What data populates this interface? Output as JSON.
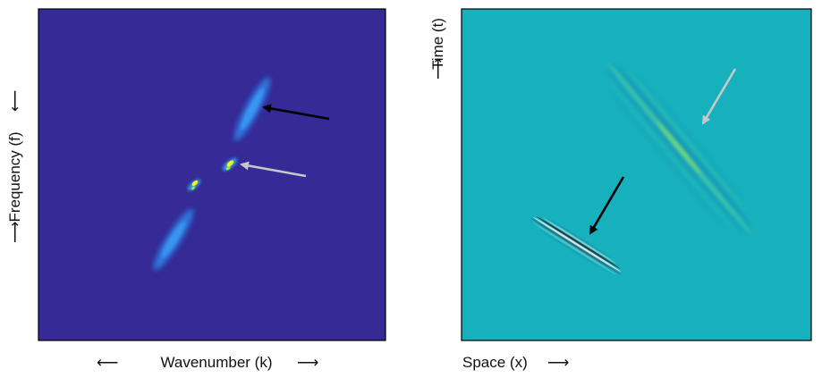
{
  "left_panel": {
    "title": "",
    "xlabel": "Wavenumber (k)",
    "ylabel": "Frequency (f)",
    "background_color": "#352a96",
    "annotations": [
      {
        "name": "black-arrow",
        "color": "#000000",
        "points_to": "upper-blob"
      },
      {
        "name": "gray-arrow",
        "color": "#c8c8c8",
        "points_to": "upper-bright-spot"
      }
    ]
  },
  "right_panel": {
    "title": "",
    "xlabel": "Space (x)",
    "ylabel": "Time (t)",
    "background_color": "#17b0bd",
    "annotations": [
      {
        "name": "black-arrow",
        "color": "#000000",
        "points_to": "lower-wave-packet"
      },
      {
        "name": "gray-arrow",
        "color": "#c8c8c8",
        "points_to": "upper-wave-packet"
      }
    ]
  },
  "arrow_glyphs": {
    "left": "⟵",
    "right": "⟶",
    "up": "⟵",
    "down": "⟶"
  }
}
